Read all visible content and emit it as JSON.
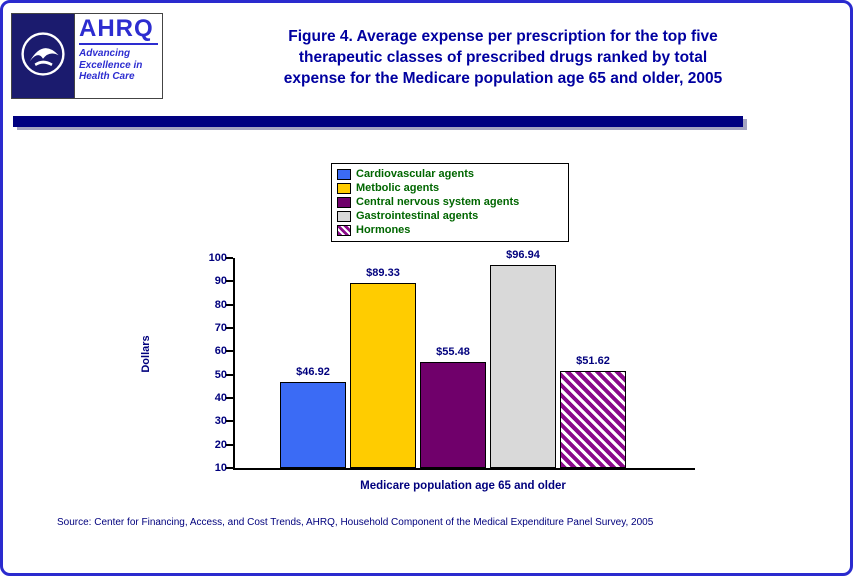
{
  "page": {
    "title_lines": [
      "Figure 4. Average expense per prescription for the top five",
      "therapeutic classes of prescribed drugs ranked by total",
      "expense for the Medicare population age 65 and older, 2005"
    ],
    "source": "Source: Center for Financing, Access, and Cost Trends, AHRQ, Household Component of the Medical Expenditure Panel Survey, 2005"
  },
  "logo": {
    "ahrq": "AHRQ",
    "tagline_lines": [
      "Advancing",
      "Excellence in",
      "Health Care"
    ]
  },
  "legend": {
    "items": [
      {
        "label": "Cardiovascular agents",
        "color": "#3B6BF5",
        "pattern": "solid"
      },
      {
        "label": "Metbolic agents",
        "color": "#FFCC00",
        "pattern": "solid"
      },
      {
        "label": "Central nervous system agents",
        "color": "#70006B",
        "pattern": "solid"
      },
      {
        "label": "Gastrointestinal agents",
        "color": "#D9D9D9",
        "pattern": "solid"
      },
      {
        "label": "Hormones",
        "color": "#8B0B8B",
        "pattern": "hatch"
      }
    ]
  },
  "chart_data": {
    "type": "bar",
    "title": "Figure 4. Average expense per prescription for the top five therapeutic classes of prescribed drugs ranked by total expense for the Medicare population age 65 and older, 2005",
    "categories": [
      "Cardiovascular agents",
      "Metbolic agents",
      "Central nervous system agents",
      "Gastrointestinal agents",
      "Hormones"
    ],
    "values": [
      46.92,
      89.33,
      55.48,
      96.94,
      51.62
    ],
    "value_labels": [
      "$46.92",
      "$89.33",
      "$55.48",
      "$96.94",
      "$51.62"
    ],
    "xlabel": "Medicare population age 65 and older",
    "ylabel": "Dollars",
    "ylim": [
      10,
      100
    ],
    "yticks": [
      10,
      20,
      30,
      40,
      50,
      60,
      70,
      80,
      90,
      100
    ],
    "grid": false,
    "legend_position": "top-center"
  }
}
